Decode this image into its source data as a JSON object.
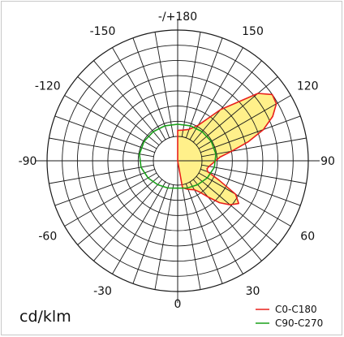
{
  "chart_data": {
    "type": "polar",
    "unit_label": "cd/klm",
    "angle_labels": [
      {
        "angle": 180,
        "text": "-/+180"
      },
      {
        "angle": 150,
        "text": "150"
      },
      {
        "angle": 120,
        "text": "120"
      },
      {
        "angle": 90,
        "text": "90"
      },
      {
        "angle": 60,
        "text": "60"
      },
      {
        "angle": 30,
        "text": "30"
      },
      {
        "angle": 0,
        "text": "0"
      },
      {
        "angle": -30,
        "text": "-30"
      },
      {
        "angle": -60,
        "text": "-60"
      },
      {
        "angle": -90,
        "text": "-90"
      },
      {
        "angle": -120,
        "text": "-120"
      },
      {
        "angle": -150,
        "text": "-150"
      }
    ],
    "radial_grid_rings": 7,
    "angular_grid_step_deg": 10,
    "r_max": 7,
    "series": [
      {
        "name": "C0-C180",
        "color": "#e8201c",
        "fill": "#fff08a",
        "angles": [
          10,
          20,
          30,
          35,
          40,
          45,
          50,
          55,
          60,
          65,
          70,
          75,
          80,
          90,
          95,
          100,
          105,
          110,
          115,
          120,
          125,
          130,
          140,
          150,
          160,
          170,
          180
        ],
        "values": [
          0.2,
          0.4,
          0.6,
          0.9,
          1.5,
          2.3,
          2.9,
          3.3,
          2.8,
          1.4,
          0.5,
          0.4,
          0.5,
          0.9,
          1.2,
          2.0,
          3.2,
          4.4,
          5.3,
          5.9,
          6.0,
          5.3,
          2.8,
          1.1,
          0.6,
          0.45,
          0.4
        ]
      },
      {
        "name": "C90-C270",
        "color": "#1aa01a",
        "fill": "none",
        "angles": [
          0,
          20,
          40,
          60,
          80,
          100,
          120,
          140,
          160,
          180,
          -160,
          -140,
          -120,
          -100,
          -80,
          -60,
          -40,
          -20
        ],
        "values": [
          0.2,
          0.3,
          0.45,
          0.65,
          0.85,
          0.95,
          0.95,
          0.9,
          0.85,
          0.8,
          0.85,
          0.9,
          0.95,
          0.95,
          0.85,
          0.65,
          0.45,
          0.3
        ]
      }
    ]
  }
}
